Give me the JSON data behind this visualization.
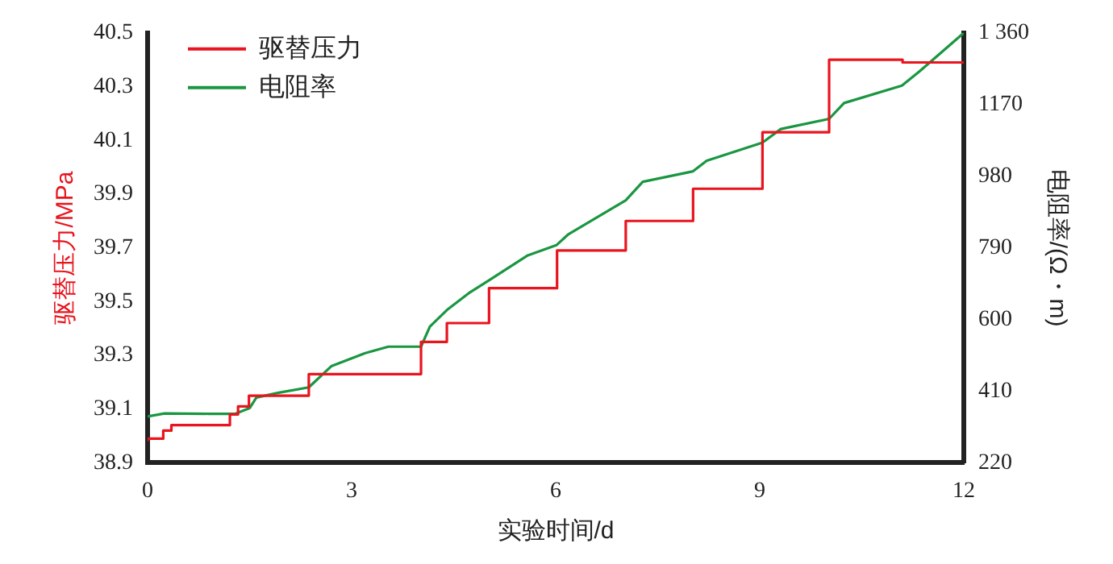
{
  "chart_data": {
    "type": "line",
    "xlabel": "实验时间/d",
    "ylabel": "驱替压力/MPa",
    "y2label": "电阻率/(Ω・m)",
    "xlim": [
      0,
      12
    ],
    "xticks": [
      0,
      3,
      6,
      9,
      12
    ],
    "ylim": [
      38.9,
      40.5
    ],
    "yticks": [
      38.9,
      39.1,
      39.3,
      39.5,
      39.7,
      39.9,
      40.1,
      40.3,
      40.5
    ],
    "y2lim": [
      220,
      1360
    ],
    "y2ticks": [
      220,
      410,
      600,
      790,
      980,
      1170,
      {
        "value": 1360,
        "label": "1 360"
      }
    ],
    "grid": false,
    "legend": "top left",
    "marker": "none",
    "line_style": "solid",
    "series": [
      {
        "name": "驱替压力",
        "type": "step",
        "color": "#e8141e",
        "x": [
          0,
          0.23,
          0.35,
          1.21,
          1.33,
          1.49,
          2.37,
          4.02,
          4.4,
          5.02,
          6.02,
          7.03,
          8.02,
          9.04,
          10.02,
          11.1,
          12
        ],
        "values": [
          38.98,
          38.99,
          39.02,
          39.04,
          39.08,
          39.11,
          39.15,
          39.23,
          39.35,
          39.42,
          39.55,
          39.69,
          39.8,
          39.92,
          40.13,
          40.4,
          40.39
        ]
      },
      {
        "name": "电阻率",
        "type": "line",
        "axis": "y2",
        "color": "#1a9641",
        "x": [
          0,
          0.25,
          0.9,
          1.29,
          1.5,
          1.6,
          1.93,
          2.37,
          2.7,
          3.2,
          3.54,
          4.02,
          4.15,
          4.4,
          4.74,
          5.02,
          5.59,
          6.01,
          6.18,
          7.03,
          7.28,
          8.02,
          8.22,
          9.04,
          9.31,
          10.02,
          10.24,
          11.09,
          11.35,
          12
        ],
        "values": [
          343,
          351,
          350,
          350,
          365,
          393,
          406,
          420,
          476,
          511,
          528,
          528,
          581,
          625,
          672,
          704,
          770,
          797,
          825,
          916,
          965,
          993,
          1021,
          1069,
          1105,
          1132,
          1174,
          1220,
          1258,
          1360
        ]
      }
    ]
  }
}
